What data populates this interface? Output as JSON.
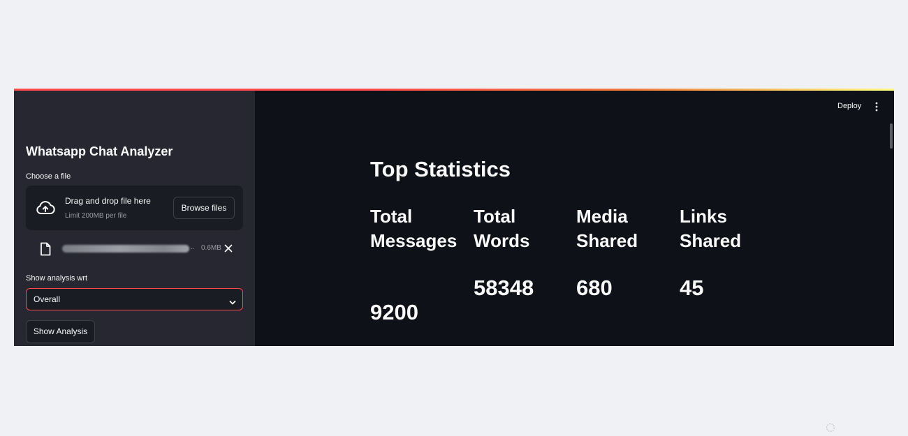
{
  "sidebar": {
    "title": "Whatsapp Chat Analyzer",
    "uploader": {
      "label": "Choose a file",
      "drop_text": "Drag and drop file here",
      "limit_text": "Limit 200MB per file",
      "browse_label": "Browse files",
      "file_ellipsis": "..",
      "file_size": "0.6MB"
    },
    "analysis_select": {
      "label": "Show analysis wrt",
      "value": "Overall"
    },
    "show_button_label": "Show Analysis"
  },
  "header": {
    "deploy_label": "Deploy"
  },
  "main": {
    "title": "Top Statistics",
    "stats": [
      {
        "label": "Total Messages",
        "value": "9200"
      },
      {
        "label": "Total Words",
        "value": "58348"
      },
      {
        "label": "Media Shared",
        "value": "680"
      },
      {
        "label": "Links Shared",
        "value": "45"
      }
    ]
  },
  "colors": {
    "background": "#0e1117",
    "sidebar": "#262730",
    "accent": "#ff4b4b"
  },
  "icons": [
    "upload-cloud-icon",
    "file-icon",
    "close-icon",
    "chevron-down-icon",
    "kebab-menu-icon",
    "loading-spinner-icon"
  ]
}
